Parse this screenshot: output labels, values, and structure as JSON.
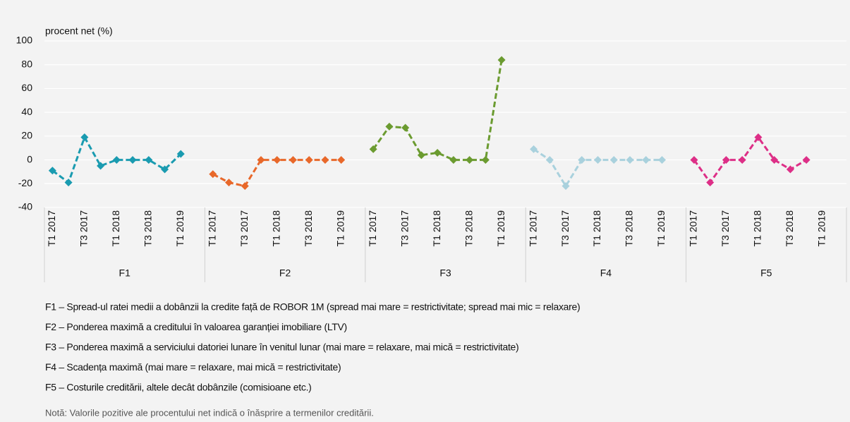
{
  "chart_data": {
    "type": "line",
    "y_label": "procent net (%)",
    "ylim": [
      -40,
      100
    ],
    "yticks": [
      -40,
      -20,
      0,
      20,
      40,
      60,
      80,
      100
    ],
    "grid": true,
    "categories": [
      "T1 2017",
      null,
      "T3 2017",
      null,
      "T1 2018",
      null,
      "T3 2018",
      null,
      "T1 2019",
      null,
      "T1 2017",
      null,
      "T3 2017",
      null,
      "T1 2018",
      null,
      "T3 2018",
      null,
      "T1 2019",
      null,
      "T1 2017",
      null,
      "T3 2017",
      null,
      "T1 2018",
      null,
      "T3 2018",
      null,
      "T1 2019",
      null,
      "T1 2017",
      null,
      "T3 2017",
      null,
      "T1 2018",
      null,
      "T3 2018",
      null,
      "T1 2019",
      null,
      "T1 2017",
      null,
      "T3 2017",
      null,
      "T1 2018",
      null,
      "T3 2018",
      null,
      "T1 2019",
      null
    ],
    "groups": [
      "F1",
      "F2",
      "F3",
      "F4",
      "F5"
    ],
    "series": [
      {
        "color": "#1a9bb0",
        "values": [
          -9,
          -19,
          19,
          -5,
          0,
          0,
          0,
          -8,
          5,
          null,
          null,
          null,
          null,
          null,
          null,
          null,
          null,
          null,
          null,
          null,
          null,
          null,
          null,
          null,
          null,
          null,
          null,
          null,
          null,
          null,
          null,
          null,
          null,
          null,
          null,
          null,
          null,
          null,
          null,
          null,
          null,
          null,
          null,
          null,
          null,
          null,
          null,
          null,
          null,
          null
        ]
      },
      {
        "color": "#e8682a",
        "values": [
          null,
          null,
          null,
          null,
          null,
          null,
          null,
          null,
          null,
          null,
          -12,
          -19,
          -22,
          0,
          0,
          0,
          0,
          0,
          0,
          null,
          null,
          null,
          null,
          null,
          null,
          null,
          null,
          null,
          null,
          null,
          null,
          null,
          null,
          null,
          null,
          null,
          null,
          null,
          null,
          null,
          null,
          null,
          null,
          null,
          null,
          null,
          null,
          null,
          null,
          null
        ]
      },
      {
        "color": "#6b9b30",
        "values": [
          null,
          null,
          null,
          null,
          null,
          null,
          null,
          null,
          null,
          null,
          null,
          null,
          null,
          null,
          null,
          null,
          null,
          null,
          null,
          null,
          9,
          28,
          27,
          4,
          6,
          0,
          0,
          0,
          84,
          null,
          null,
          null,
          null,
          null,
          null,
          null,
          null,
          null,
          null,
          null,
          null,
          null,
          null,
          null,
          null,
          null,
          null,
          null,
          null,
          null
        ]
      },
      {
        "color": "#a9d1dd",
        "values": [
          null,
          null,
          null,
          null,
          null,
          null,
          null,
          null,
          null,
          null,
          null,
          null,
          null,
          null,
          null,
          null,
          null,
          null,
          null,
          null,
          null,
          null,
          null,
          null,
          null,
          null,
          null,
          null,
          null,
          null,
          9,
          0,
          -22,
          0,
          0,
          0,
          0,
          0,
          0,
          null,
          null,
          null,
          null,
          null,
          null,
          null,
          null,
          null,
          null,
          null
        ]
      },
      {
        "color": "#dd2f87",
        "values": [
          null,
          null,
          null,
          null,
          null,
          null,
          null,
          null,
          null,
          null,
          null,
          null,
          null,
          null,
          null,
          null,
          null,
          null,
          null,
          null,
          null,
          null,
          null,
          null,
          null,
          null,
          null,
          null,
          null,
          null,
          null,
          null,
          null,
          null,
          null,
          null,
          null,
          null,
          null,
          null,
          0,
          -19,
          0,
          0,
          19,
          0,
          -8,
          0,
          null,
          null
        ]
      }
    ],
    "descriptions": [
      "F1 – Spread-ul ratei medii a dobânzii la credite față de ROBOR 1M (spread mai mare = restrictivitate; spread mai mic = relaxare)",
      "F2 – Ponderea maximă a creditului în valoarea garanției imobiliare (LTV)",
      "F3 – Ponderea maximă a serviciului datoriei lunare în venitul lunar (mai mare = relaxare, mai mică = restrictivitate)",
      "F4 – Scadența maximă (mai mare = relaxare, mai mică = restrictivitate)",
      "F5 – Costurile creditării, altele decât dobânzile (comisioane etc.)"
    ],
    "note": "Notă: Valorile pozitive ale procentului net indică o înăsprire a termenilor creditării."
  }
}
